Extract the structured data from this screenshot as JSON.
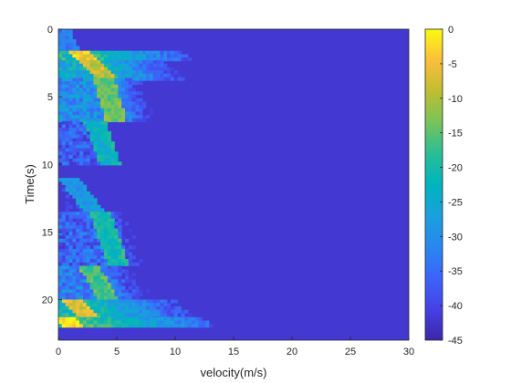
{
  "chart_data": {
    "type": "heatmap",
    "title": "",
    "xlabel": "velocity(m/s)",
    "ylabel": "Time(s)",
    "xlim": [
      0,
      30
    ],
    "ylim": [
      23,
      0
    ],
    "x_ticks": [
      "0",
      "5",
      "10",
      "15",
      "20",
      "25",
      "30"
    ],
    "y_ticks": [
      "0",
      "5",
      "10",
      "15",
      "20"
    ],
    "y_direction": "reversed",
    "colormap": "parula",
    "clim": [
      -45,
      0
    ],
    "colorbar": {
      "ticks": [
        "0",
        "-5",
        "-10",
        "-15",
        "-20",
        "-25",
        "-30",
        "-35",
        "-40",
        "-45"
      ],
      "placement": "right"
    },
    "background_value": -42,
    "features": [
      {
        "t": [
          0,
          1.6
        ],
        "v": [
          0,
          0.8
        ],
        "level": -34,
        "trail": 2
      },
      {
        "t": [
          1.6,
          2.3
        ],
        "v": [
          1.5,
          2.6
        ],
        "level": -6,
        "trail": 9
      },
      {
        "t": [
          2.3,
          3.6
        ],
        "v": [
          2.5,
          4.0
        ],
        "level": -10,
        "trail": 7
      },
      {
        "t": [
          3.6,
          6.8
        ],
        "v": [
          3.8,
          4.8
        ],
        "level": -16,
        "trail": 4
      },
      {
        "t": [
          6.8,
          10.0
        ],
        "v": [
          3.0,
          4.3
        ],
        "level": -24,
        "trail": 2
      },
      {
        "t": [
          11.0,
          13.5
        ],
        "v": [
          0.8,
          3.0
        ],
        "level": -30,
        "trail": 2
      },
      {
        "t": [
          13.5,
          17.5
        ],
        "v": [
          3.5,
          5.0
        ],
        "level": -22,
        "trail": 4
      },
      {
        "t": [
          17.5,
          20.0
        ],
        "v": [
          2.5,
          4.2
        ],
        "level": -18,
        "trail": 5
      },
      {
        "t": [
          20.0,
          21.3
        ],
        "v": [
          1.2,
          2.5
        ],
        "level": -8,
        "trail": 9
      },
      {
        "t": [
          21.3,
          22.0
        ],
        "v": [
          0.3,
          1.5
        ],
        "level": -4,
        "trail": 12
      }
    ]
  }
}
